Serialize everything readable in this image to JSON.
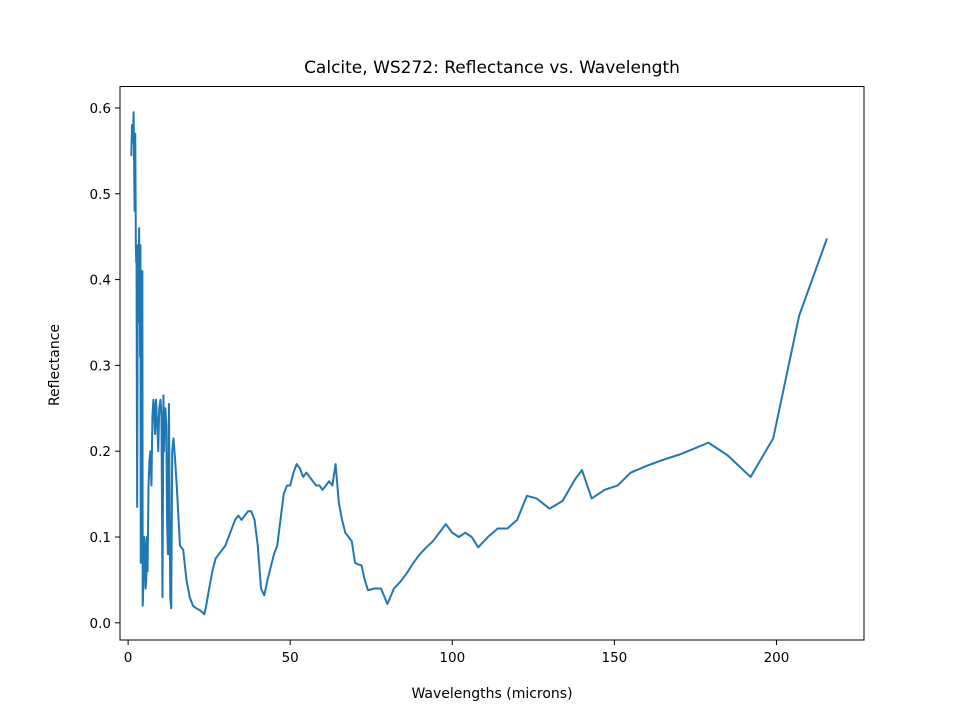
{
  "chart_data": {
    "type": "line",
    "title": "Calcite, WS272: Reflectance vs. Wavelength",
    "xlabel": "Wavelengths (microns)",
    "ylabel": "Reflectance",
    "xlim": [
      -2.5,
      227
    ],
    "ylim": [
      -0.02,
      0.625
    ],
    "xticks": [
      0,
      50,
      100,
      150,
      200
    ],
    "yticks": [
      0.0,
      0.1,
      0.2,
      0.3,
      0.4,
      0.5,
      0.6
    ],
    "xtick_labels": [
      "0",
      "50",
      "100",
      "150",
      "200"
    ],
    "ytick_labels": [
      "0.0",
      "0.1",
      "0.2",
      "0.3",
      "0.4",
      "0.5",
      "0.6"
    ],
    "grid": false,
    "legend": "none",
    "line_color": "#1f77b4",
    "series": [
      {
        "x": [
          1.0,
          1.2,
          1.5,
          1.7,
          1.9,
          2.0,
          2.1,
          2.2,
          2.3,
          2.4,
          2.5,
          2.6,
          2.7,
          2.8,
          3.0,
          3.2,
          3.4,
          3.5,
          3.6,
          3.7,
          3.8,
          3.9,
          4.0,
          4.2,
          4.4,
          4.5,
          4.6,
          4.8,
          5.0,
          5.2,
          5.4,
          5.6,
          5.8,
          6.0,
          6.3,
          6.6,
          6.9,
          7.2,
          7.5,
          7.8,
          8.0,
          8.3,
          8.6,
          9.0,
          9.3,
          9.6,
          10.0,
          10.3,
          10.6,
          10.9,
          11.1,
          11.3,
          11.5,
          11.8,
          12.0,
          12.3,
          12.6,
          13.0,
          13.3,
          13.6,
          14.0,
          14.5,
          15.0,
          16.0,
          17.0,
          18.0,
          19.0,
          20.0,
          21.0,
          22.0,
          23.0,
          23.5,
          24.0,
          25.0,
          26.0,
          27.0,
          28.0,
          29.0,
          30.0,
          31.0,
          32.0,
          33.0,
          34.0,
          35.0,
          36.0,
          37.0,
          38.0,
          39.0,
          40.0,
          41.0,
          42.0,
          43.0,
          44.0,
          45.0,
          46.0,
          47.0,
          48.0,
          49.0,
          50.0,
          51.0,
          52.0,
          53.0,
          54.0,
          55.0,
          56.0,
          57.0,
          58.0,
          59.0,
          60.0,
          61.0,
          62.0,
          63.0,
          64.0,
          65.0,
          66.0,
          67.0,
          68.0,
          69.0,
          70.0,
          71.0,
          72.0,
          73.0,
          74.0,
          76.0,
          78.0,
          80.0,
          82.0,
          84.0,
          86.0,
          88.0,
          90.0,
          92.0,
          94.0,
          96.0,
          98.0,
          100.0,
          102.0,
          104.0,
          106.0,
          108.0,
          111.0,
          114.0,
          117.0,
          120.0,
          123.0,
          126.0,
          130.0,
          134.0,
          138.0,
          140.0,
          143.0,
          147.0,
          151.0,
          155.0,
          160.0,
          165.0,
          170.0,
          174.0,
          179.0,
          185.0,
          192.0,
          199.0,
          207.0,
          215.5
        ],
        "y": [
          0.545,
          0.58,
          0.56,
          0.595,
          0.52,
          0.48,
          0.55,
          0.57,
          0.5,
          0.44,
          0.42,
          0.44,
          0.25,
          0.135,
          0.44,
          0.4,
          0.46,
          0.35,
          0.43,
          0.31,
          0.44,
          0.07,
          0.32,
          0.25,
          0.41,
          0.02,
          0.03,
          0.06,
          0.1,
          0.09,
          0.04,
          0.05,
          0.1,
          0.06,
          0.16,
          0.19,
          0.2,
          0.16,
          0.24,
          0.26,
          0.25,
          0.22,
          0.26,
          0.23,
          0.2,
          0.25,
          0.26,
          0.24,
          0.03,
          0.265,
          0.2,
          0.24,
          0.25,
          0.23,
          0.12,
          0.08,
          0.255,
          0.03,
          0.017,
          0.2,
          0.215,
          0.19,
          0.16,
          0.09,
          0.085,
          0.05,
          0.03,
          0.02,
          0.017,
          0.015,
          0.012,
          0.01,
          0.018,
          0.04,
          0.06,
          0.075,
          0.08,
          0.085,
          0.09,
          0.1,
          0.11,
          0.12,
          0.125,
          0.12,
          0.125,
          0.13,
          0.13,
          0.12,
          0.09,
          0.04,
          0.032,
          0.05,
          0.065,
          0.08,
          0.09,
          0.12,
          0.15,
          0.16,
          0.16,
          0.175,
          0.185,
          0.18,
          0.17,
          0.175,
          0.17,
          0.165,
          0.16,
          0.16,
          0.155,
          0.16,
          0.165,
          0.16,
          0.185,
          0.14,
          0.12,
          0.105,
          0.1,
          0.095,
          0.07,
          0.068,
          0.067,
          0.05,
          0.038,
          0.04,
          0.04,
          0.022,
          0.04,
          0.048,
          0.058,
          0.07,
          0.08,
          0.088,
          0.095,
          0.105,
          0.115,
          0.105,
          0.1,
          0.105,
          0.1,
          0.088,
          0.1,
          0.11,
          0.11,
          0.12,
          0.148,
          0.145,
          0.133,
          0.142,
          0.168,
          0.178,
          0.145,
          0.155,
          0.16,
          0.175,
          0.183,
          0.19,
          0.196,
          0.202,
          0.21,
          0.195,
          0.17,
          0.215,
          0.358,
          0.447
        ]
      }
    ]
  }
}
